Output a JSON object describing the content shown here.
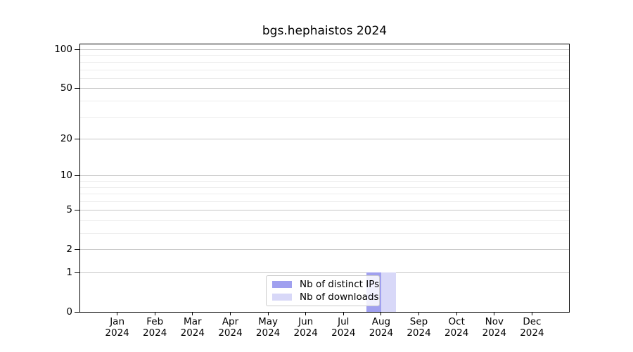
{
  "chart_data": {
    "type": "bar",
    "title": "bgs.hephaistos 2024",
    "categories": [
      "Jan",
      "Feb",
      "Mar",
      "Apr",
      "May",
      "Jun",
      "Jul",
      "Aug",
      "Sep",
      "Oct",
      "Nov",
      "Dec"
    ],
    "x_year_label": "2024",
    "series": [
      {
        "name": "Nb of distinct IPs",
        "color": "#a0a0ef",
        "values": [
          0,
          0,
          0,
          0,
          0,
          0,
          0,
          1,
          0,
          0,
          0,
          0
        ]
      },
      {
        "name": "Nb of downloads",
        "color": "#d8d8f8",
        "values": [
          0,
          0,
          0,
          0,
          0,
          0,
          0,
          1,
          0,
          0,
          0,
          0
        ]
      }
    ],
    "yscale": "log1p",
    "ylim": [
      0,
      100
    ],
    "y_major_ticks": [
      0,
      1,
      2,
      5,
      10,
      20,
      50,
      100
    ],
    "y_minor_gridlines": [
      3,
      4,
      6,
      7,
      8,
      9,
      30,
      40,
      60,
      70,
      80,
      90
    ],
    "grid": "horizontal",
    "legend_position": "lower center",
    "colors": {
      "grid_major": "#c6c6c6",
      "grid_minor": "#ececec",
      "axis": "#000000",
      "text": "#000000",
      "legend_border": "#cccccc",
      "background": "#ffffff"
    }
  }
}
